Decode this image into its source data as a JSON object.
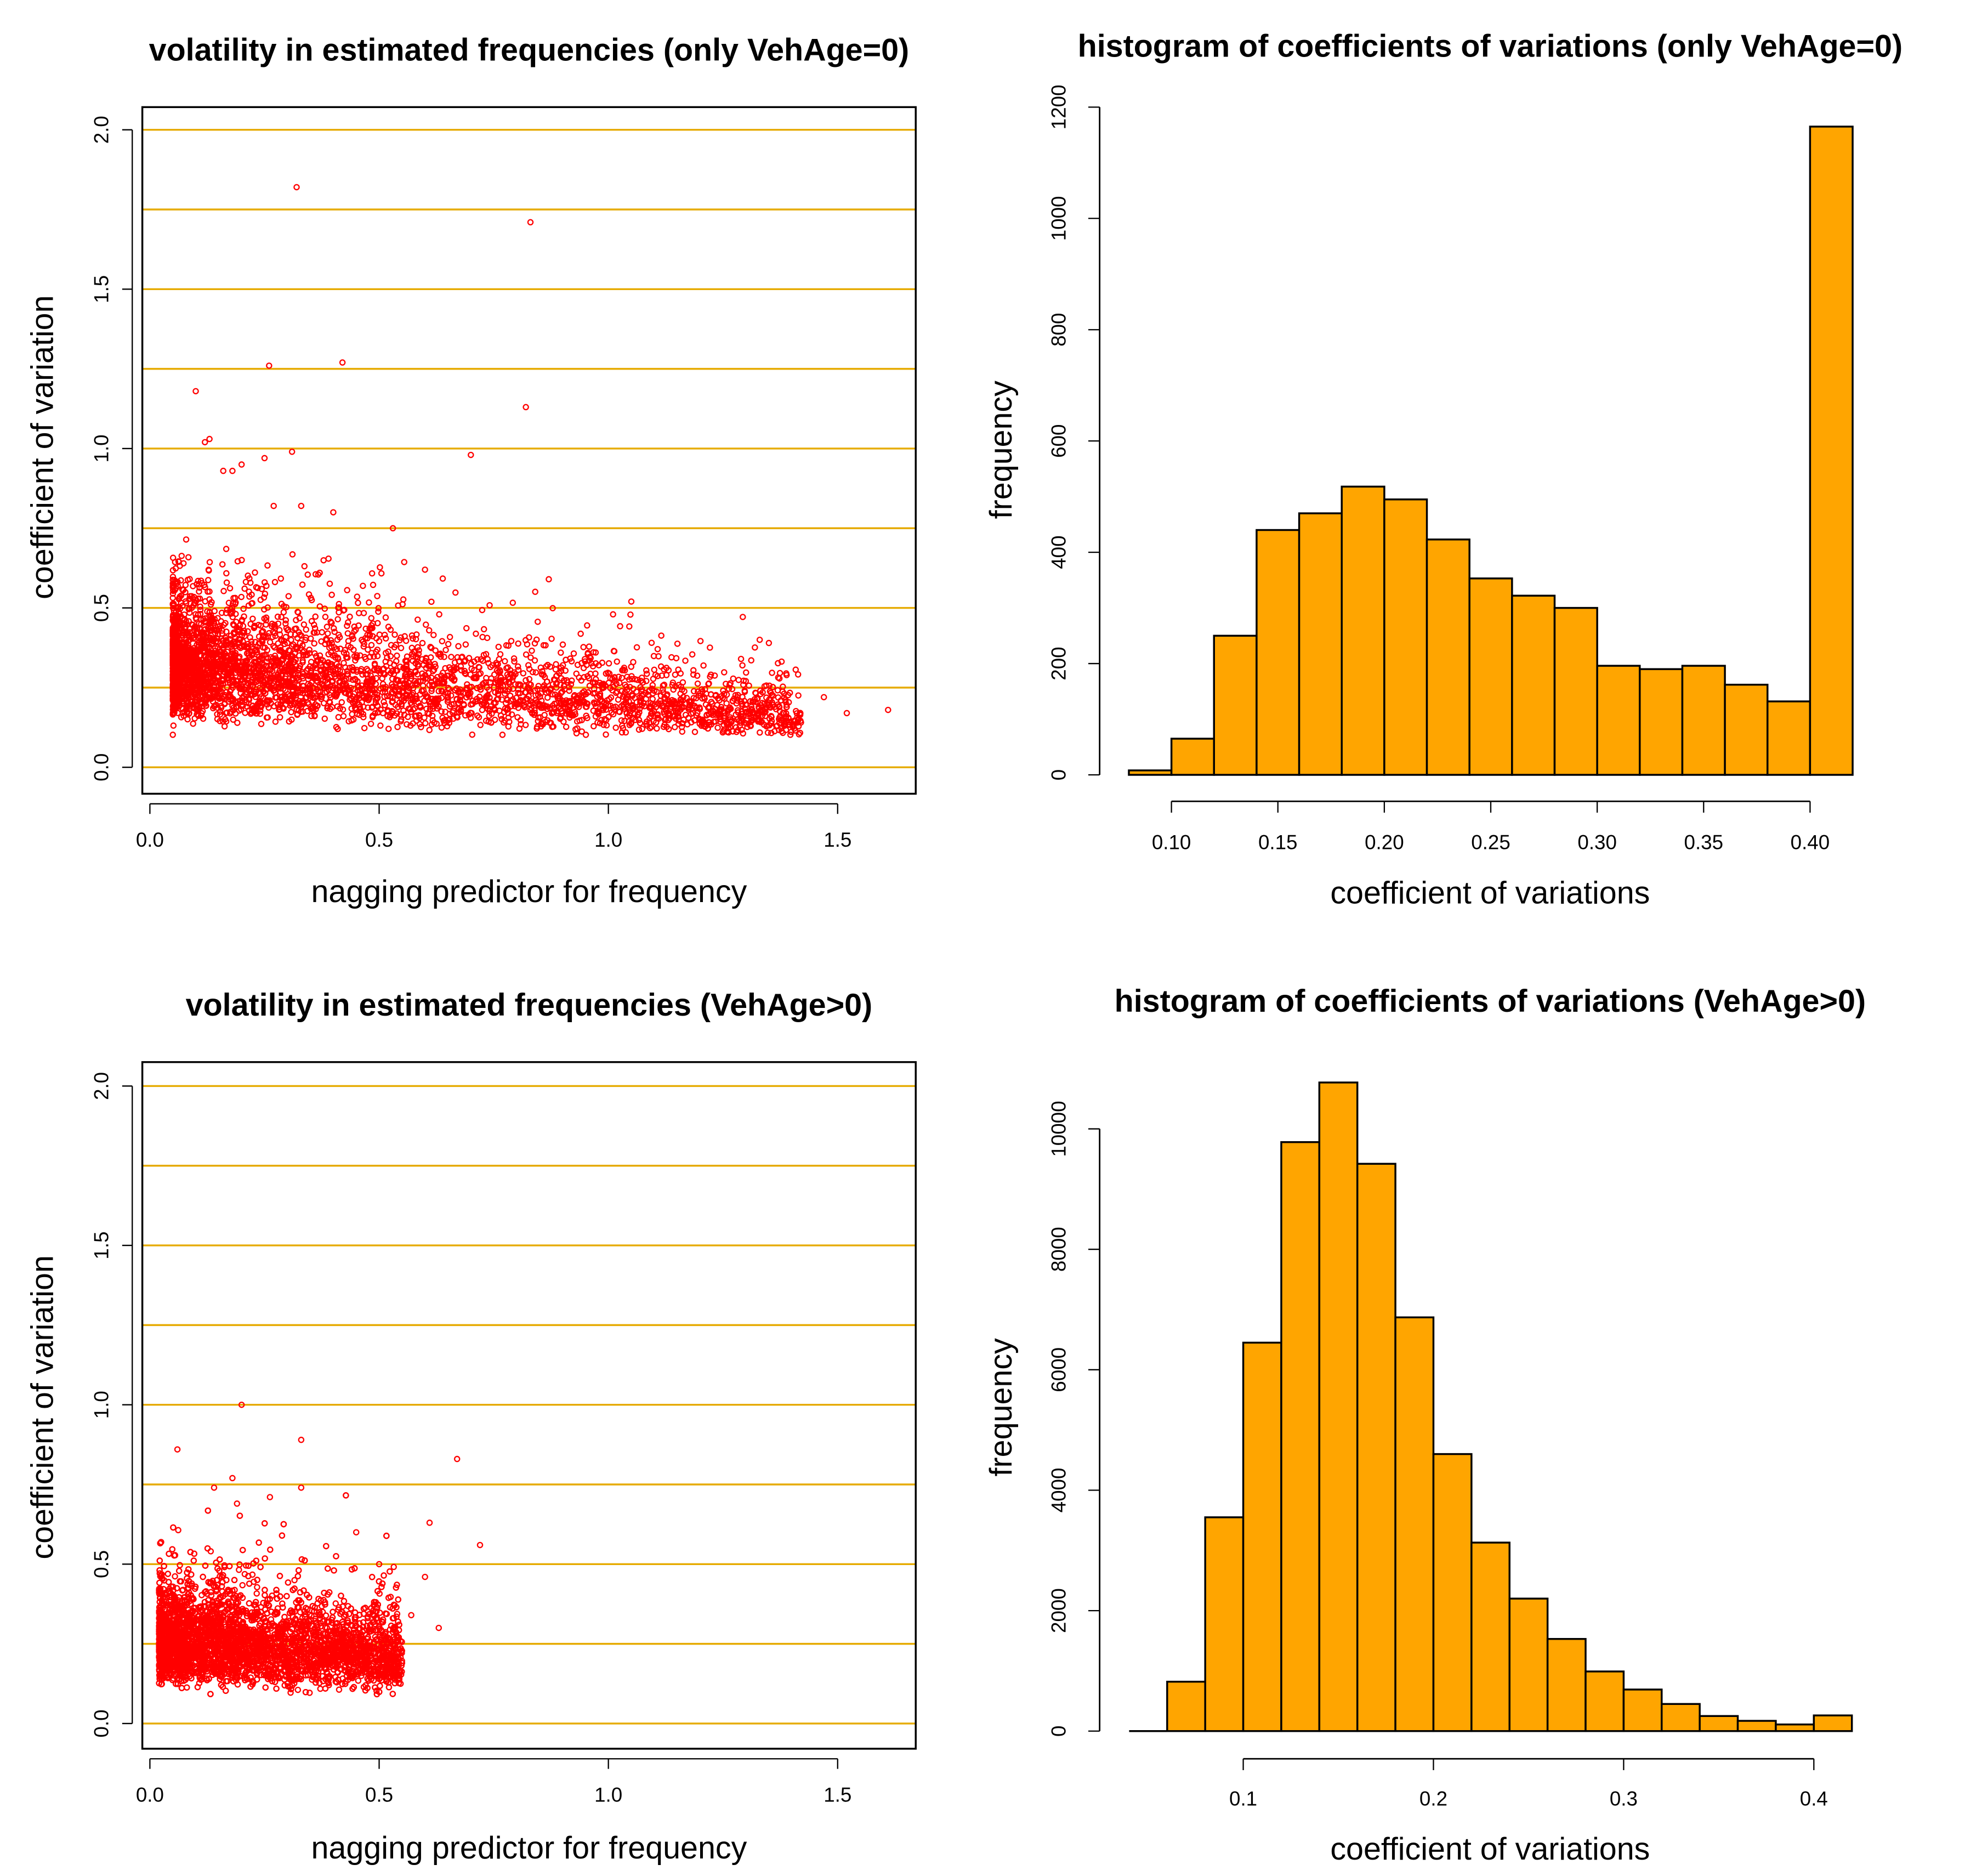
{
  "chart_data": [
    {
      "type": "scatter",
      "title": "volatility in estimated frequencies (only VehAge=0)",
      "xlabel": "nagging predictor for frequency",
      "ylabel": "coefficient of variation",
      "xlim": [
        0,
        1.65
      ],
      "ylim": [
        -0.08,
        2.08
      ],
      "xticks": [
        "0.0",
        "0.5",
        "1.0",
        "1.5"
      ],
      "yticks": [
        "0.0",
        "0.5",
        "1.0",
        "1.5",
        "2.0"
      ],
      "hlines": [
        0,
        0.25,
        0.5,
        0.75,
        1.0,
        1.25,
        1.5,
        1.75,
        2.0
      ],
      "hline_color": "#e6ab02",
      "point_color": "#ff0000",
      "bulk": {
        "n": 4200,
        "x_range": [
          0.05,
          1.42
        ],
        "y_center_at_x0": 0.33,
        "y_slope": -0.12,
        "y_min": 0.1
      },
      "outliers": [
        [
          0.32,
          1.82
        ],
        [
          0.83,
          1.71
        ],
        [
          0.26,
          1.26
        ],
        [
          0.42,
          1.27
        ],
        [
          0.1,
          1.18
        ],
        [
          0.82,
          1.13
        ],
        [
          0.12,
          1.02
        ],
        [
          0.13,
          1.03
        ],
        [
          0.31,
          0.99
        ],
        [
          0.7,
          0.98
        ],
        [
          0.25,
          0.97
        ],
        [
          0.2,
          0.95
        ],
        [
          0.16,
          0.93
        ],
        [
          0.18,
          0.93
        ],
        [
          0.33,
          0.82
        ],
        [
          0.4,
          0.8
        ],
        [
          0.27,
          0.82
        ],
        [
          0.53,
          0.75
        ],
        [
          1.47,
          0.22
        ],
        [
          1.52,
          0.17
        ],
        [
          1.61,
          0.18
        ],
        [
          1.33,
          0.4
        ],
        [
          1.35,
          0.39
        ],
        [
          1.05,
          0.52
        ],
        [
          0.87,
          0.59
        ],
        [
          0.6,
          0.62
        ]
      ]
    },
    {
      "type": "bar",
      "title": "histogram of coefficients of variations (only VehAge=0)",
      "xlabel": "coefficient of variations",
      "ylabel": "frequency",
      "bin_edges": [
        0.08,
        0.1,
        0.12,
        0.14,
        0.16,
        0.18,
        0.2,
        0.22,
        0.24,
        0.26,
        0.28,
        0.3,
        0.32,
        0.34,
        0.36,
        0.38,
        0.4,
        0.42
      ],
      "values": [
        8,
        65,
        250,
        440,
        470,
        518,
        495,
        423,
        353,
        322,
        300,
        196,
        190,
        196,
        162,
        132,
        1165
      ],
      "xticks": [
        "0.10",
        "0.15",
        "0.20",
        "0.25",
        "0.30",
        "0.35",
        "0.40"
      ],
      "yticks": [
        "0",
        "200",
        "400",
        "600",
        "800",
        "1000",
        "1200"
      ],
      "ylim": [
        0,
        1200
      ],
      "bar_color": "#ffa500"
    },
    {
      "type": "scatter",
      "title": "volatility in estimated frequencies (VehAge>0)",
      "xlabel": "nagging predictor for frequency",
      "ylabel": "coefficient of variation",
      "xlim": [
        0,
        1.65
      ],
      "ylim": [
        -0.08,
        2.08
      ],
      "xticks": [
        "0.0",
        "0.5",
        "1.0",
        "1.5"
      ],
      "yticks": [
        "0.0",
        "0.5",
        "1.0",
        "1.5",
        "2.0"
      ],
      "hlines": [
        0,
        0.25,
        0.5,
        0.75,
        1.0,
        1.25,
        1.5,
        1.75,
        2.0
      ],
      "hline_color": "#e6ab02",
      "point_color": "#ff0000",
      "bulk": {
        "n": 6500,
        "x_range": [
          0.02,
          0.55
        ],
        "y_center_at_x0": 0.27,
        "y_slope": -0.1,
        "y_min": 0.06
      },
      "outliers": [
        [
          0.2,
          1.0
        ],
        [
          0.33,
          0.89
        ],
        [
          0.06,
          0.86
        ],
        [
          0.67,
          0.83
        ],
        [
          0.18,
          0.77
        ],
        [
          0.33,
          0.74
        ],
        [
          0.14,
          0.74
        ],
        [
          0.19,
          0.69
        ],
        [
          0.61,
          0.63
        ],
        [
          0.45,
          0.6
        ],
        [
          0.72,
          0.56
        ],
        [
          0.6,
          0.46
        ],
        [
          0.5,
          0.5
        ],
        [
          0.63,
          0.3
        ],
        [
          0.57,
          0.34
        ]
      ]
    },
    {
      "type": "bar",
      "title": "histogram of coefficients of variations (VehAge>0)",
      "xlabel": "coefficient of variations",
      "ylabel": "frequency",
      "bin_edges": [
        0.04,
        0.06,
        0.08,
        0.1,
        0.12,
        0.14,
        0.16,
        0.18,
        0.2,
        0.22,
        0.24,
        0.26,
        0.28,
        0.3,
        0.32,
        0.34,
        0.36,
        0.38,
        0.4,
        0.42
      ],
      "values": [
        0,
        820,
        3550,
        6450,
        9780,
        10770,
        9420,
        6870,
        4600,
        3130,
        2200,
        1530,
        990,
        690,
        450,
        250,
        170,
        110,
        260
      ],
      "xticks": [
        "0.1",
        "0.2",
        "0.3",
        "0.4"
      ],
      "yticks": [
        "0",
        "2000",
        "4000",
        "6000",
        "8000",
        "10000"
      ],
      "ylim": [
        0,
        11000
      ],
      "bar_color": "#ffa500"
    }
  ]
}
